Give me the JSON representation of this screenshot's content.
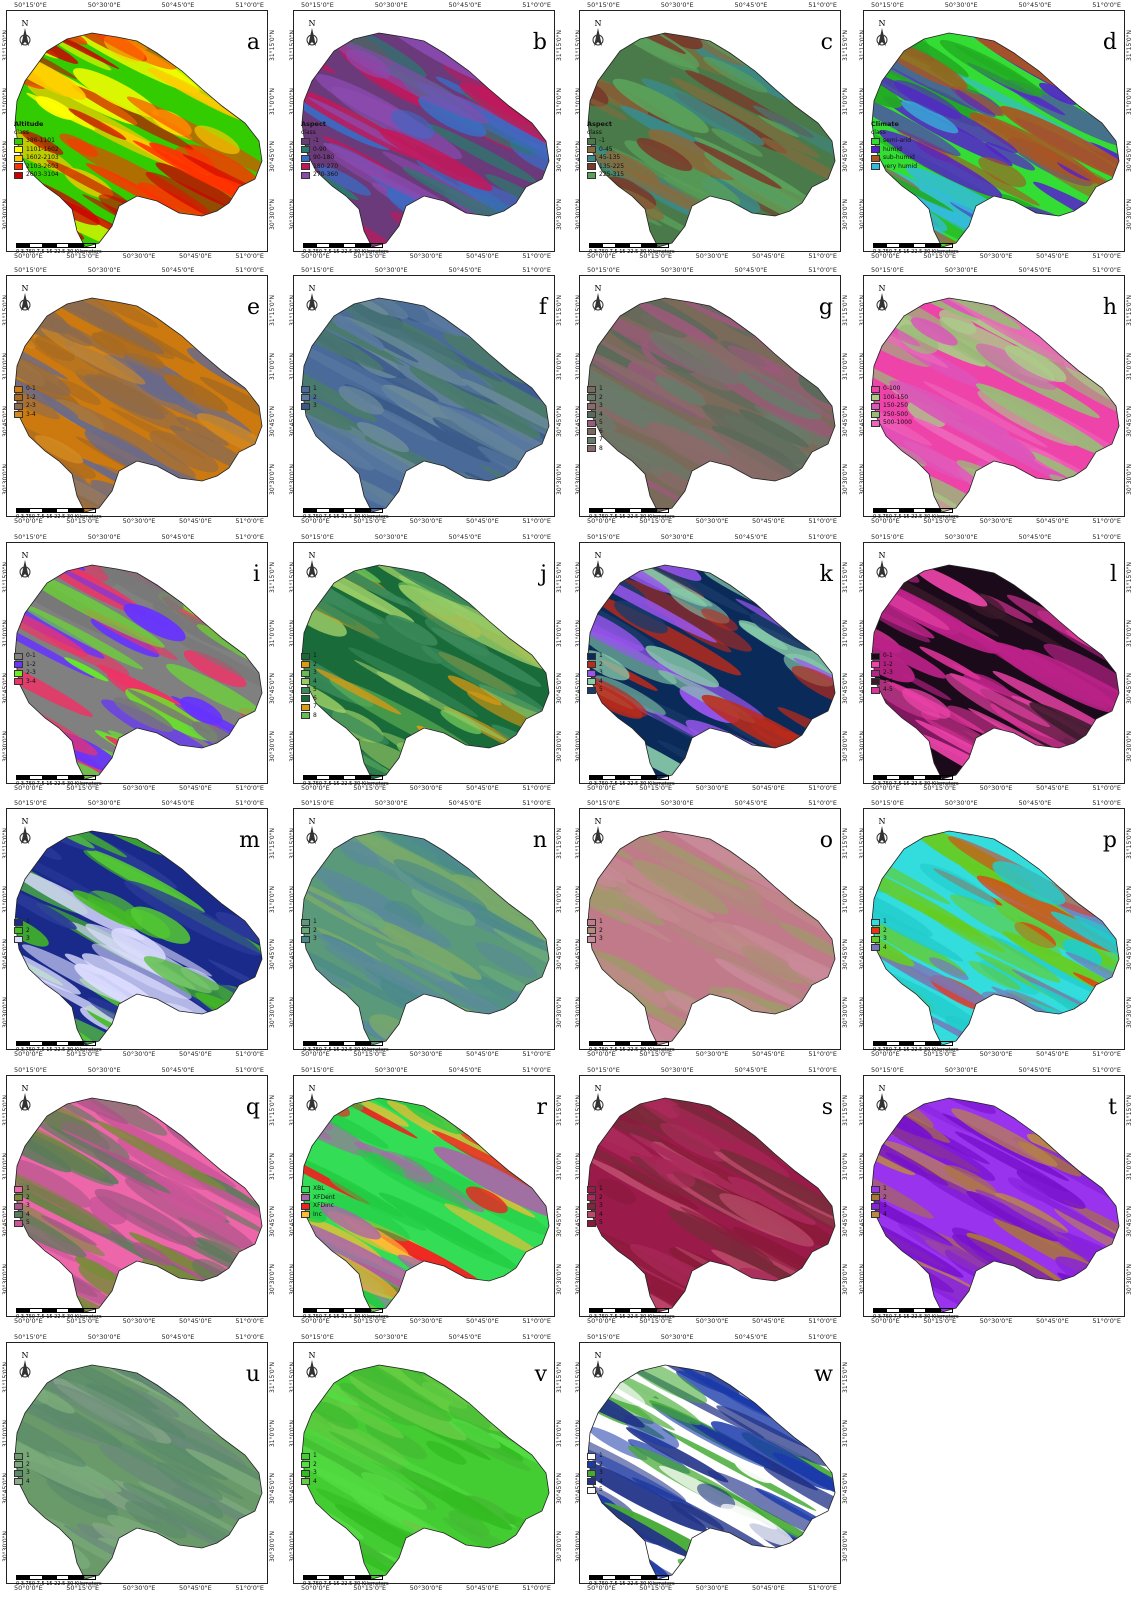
{
  "axis_ticks": {
    "top": [
      "50°15'0\"E",
      "50°30'0\"E",
      "50°45'0\"E",
      "51°0'0\"E"
    ],
    "bottom": [
      "50°0'0\"E",
      "50°15'0\"E",
      "50°30'0\"E",
      "50°45'0\"E",
      "51°0'0\"E"
    ],
    "side": [
      "31°15'0\"N",
      "31°0'0\"N",
      "30°45'0\"N",
      "30°30'0\"N"
    ]
  },
  "scale_label": "0 3.750 7.5 15 22.5 30 Kilometers",
  "panels": [
    {
      "letter": "a",
      "colors": [
        "#33cc00",
        "#ffff00",
        "#ffcc00",
        "#ff3300",
        "#cc0000"
      ],
      "legend_title": "Altitude",
      "legend_sub": "class",
      "legend": [
        "386-1101",
        "1101-1602",
        "1602-2103",
        "2103-2603",
        "2603-3104"
      ]
    },
    {
      "letter": "b",
      "colors": [
        "#6b3a7a",
        "#2a7a6e",
        "#3b6bc2",
        "#c2185b",
        "#8b4ab0"
      ],
      "legend_title": "Aspect",
      "legend_sub": "class",
      "legend": [
        "-1",
        "0-90",
        "90-180",
        "180-270",
        "270-360"
      ]
    },
    {
      "letter": "c",
      "colors": [
        "#4a7a4a",
        "#8a6a3a",
        "#3a8a8a",
        "#7a3a2a",
        "#5aa05a"
      ],
      "legend_title": "Aspect",
      "legend_sub": "class",
      "legend": [
        "-1",
        "0-45",
        "45-135",
        "135-225",
        "225-315"
      ]
    },
    {
      "letter": "d",
      "colors": [
        "#33dd33",
        "#5522cc",
        "#aa5522",
        "#33bbdd",
        "#22aa22"
      ],
      "legend_title": "Climate",
      "legend_sub": "class",
      "legend": [
        "semi-arid",
        "humid",
        "sub-humid",
        "very humid"
      ]
    },
    {
      "letter": "e",
      "colors": [
        "#cc7a10",
        "#a86a20",
        "#8a6a50",
        "#d28a20",
        "#6a6a8a"
      ],
      "legend_title": "",
      "legend_sub": "",
      "legend": [
        "0-1",
        "1-2",
        "2-3",
        "3-4"
      ]
    },
    {
      "letter": "f",
      "colors": [
        "#4a6a9a",
        "#5a7aa0",
        "#3a5a8a",
        "#6a8a9a",
        "#4a7a6a"
      ],
      "legend_title": "",
      "legend_sub": "",
      "legend": [
        "1",
        "2",
        "3"
      ]
    },
    {
      "letter": "g",
      "colors": [
        "#7a6a5a",
        "#6a7a6a",
        "#8a6a6a",
        "#5a6a5a",
        "#9a5a7a"
      ],
      "legend_title": "",
      "legend_sub": "",
      "legend": [
        "1",
        "2",
        "3",
        "4",
        "5",
        "6",
        "7",
        "8"
      ]
    },
    {
      "letter": "h",
      "colors": [
        "#ee44aa",
        "#aacc88",
        "#dd55bb",
        "#99bb77",
        "#ee66bb"
      ],
      "legend_title": "",
      "legend_sub": "",
      "legend": [
        "0-100",
        "100-150",
        "150-250",
        "250-500",
        "500-1000"
      ]
    },
    {
      "letter": "i",
      "colors": [
        "#808080",
        "#6633ff",
        "#66ee22",
        "#ee3366",
        "#777777"
      ],
      "legend_title": "",
      "legend_sub": "",
      "legend": [
        "0-1",
        "1-2",
        "2-3",
        "3-4"
      ]
    },
    {
      "letter": "j",
      "colors": [
        "#1a6b3a",
        "#e09a10",
        "#66bb55",
        "#99cc66",
        "#3a8a5a"
      ],
      "legend_title": "",
      "legend_sub": "",
      "legend": [
        "1",
        "2",
        "3",
        "4",
        "5",
        "6",
        "7",
        "8"
      ]
    },
    {
      "letter": "k",
      "colors": [
        "#0a2a5a",
        "#bb2a1a",
        "#9955ee",
        "#88ccaa",
        "#1a3a6a"
      ],
      "legend_title": "",
      "legend_sub": "",
      "legend": [
        "1",
        "2",
        "3",
        "4",
        "5"
      ]
    },
    {
      "letter": "l",
      "colors": [
        "#1a0a1a",
        "#ee44aa",
        "#bb2288",
        "#3a1a2a",
        "#dd3399"
      ],
      "legend_title": "",
      "legend_sub": "",
      "legend": [
        "0-1",
        "1-2",
        "2-3",
        "3-4",
        "4-5"
      ]
    },
    {
      "letter": "m",
      "colors": [
        "#1a2a8a",
        "#44bb22",
        "#ddddff",
        "#2a3a9a",
        "#55cc33"
      ],
      "legend_title": "",
      "legend_sub": "",
      "legend": [
        "1",
        "2",
        "3"
      ]
    },
    {
      "letter": "n",
      "colors": [
        "#5a9a7a",
        "#6aaa7a",
        "#4a8a8a",
        "#7aaa6a",
        "#5a8a9a"
      ],
      "legend_title": "",
      "legend_sub": "",
      "legend": [
        "1",
        "2",
        "3"
      ]
    },
    {
      "letter": "o",
      "colors": [
        "#c07a8a",
        "#b08a7a",
        "#ca8a9a",
        "#a09a6a",
        "#c08a8a"
      ],
      "legend_title": "",
      "legend_sub": "",
      "legend": [
        "1",
        "2",
        "3"
      ]
    },
    {
      "letter": "p",
      "colors": [
        "#33dddd",
        "#ee3311",
        "#66cc22",
        "#7777bb",
        "#22cccc"
      ],
      "legend_title": "",
      "legend_sub": "",
      "legend": [
        "1",
        "2",
        "3",
        "4"
      ]
    },
    {
      "letter": "q",
      "colors": [
        "#ee66aa",
        "#7a8a3a",
        "#aa5588",
        "#5a7a5a",
        "#cc5599"
      ],
      "legend_title": "",
      "legend_sub": "",
      "legend": [
        "1",
        "2",
        "3",
        "4",
        "5"
      ]
    },
    {
      "letter": "r",
      "colors": [
        "#33dd55",
        "#aa66aa",
        "#ee2222",
        "#ffbb33",
        "#22cc44"
      ],
      "legend_title": "",
      "legend_sub": "",
      "legend": [
        "XBL",
        "XFDent",
        "XFDinc",
        "Inc"
      ]
    },
    {
      "letter": "s",
      "colors": [
        "#9a1a4a",
        "#aa2a5a",
        "#7a2a3a",
        "#bb4a6a",
        "#8a1a3a"
      ],
      "legend_title": "",
      "legend_sub": "",
      "legend": [
        "1",
        "2",
        "3",
        "4",
        "5"
      ]
    },
    {
      "letter": "t",
      "colors": [
        "#9933ee",
        "#aa7733",
        "#8822dd",
        "#bb8844",
        "#7711cc"
      ],
      "legend_title": "",
      "legend_sub": "",
      "legend": [
        "1",
        "2",
        "3",
        "4"
      ]
    },
    {
      "letter": "u",
      "colors": [
        "#6a9a6a",
        "#7aaa7a",
        "#5a8a6a",
        "#8aaa8a",
        "#6a8a7a"
      ],
      "legend_title": "",
      "legend_sub": "",
      "legend": [
        "1",
        "2",
        "3",
        "4"
      ]
    },
    {
      "letter": "v",
      "colors": [
        "#44cc33",
        "#55dd44",
        "#33bb22",
        "#66cc44",
        "#44bb33"
      ],
      "legend_title": "",
      "legend_sub": "",
      "legend": [
        "1",
        "2",
        "3",
        "4"
      ]
    },
    {
      "letter": "w",
      "colors": [
        "#ffffff",
        "#1a3aaa",
        "#44aa33",
        "#223388",
        "#ffffff"
      ],
      "legend_title": "",
      "legend_sub": "",
      "legend": [
        "1",
        "2",
        "3",
        "4",
        "5"
      ]
    }
  ]
}
